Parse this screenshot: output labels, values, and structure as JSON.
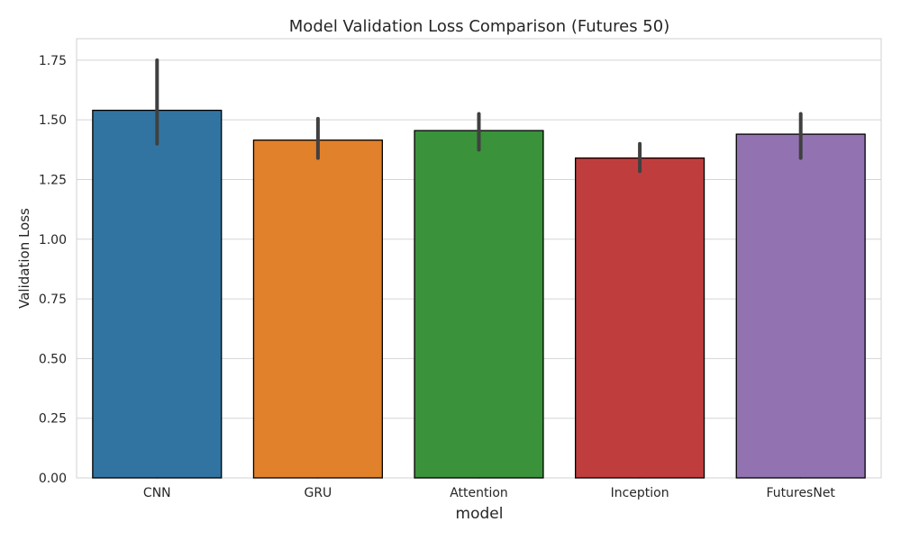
{
  "chart_data": {
    "type": "bar",
    "title": "Model Validation Loss Comparison (Futures 50)",
    "xlabel": "model",
    "ylabel": "Validation Loss",
    "categories": [
      "CNN",
      "GRU",
      "Attention",
      "Inception",
      "FuturesNet"
    ],
    "values": [
      1.54,
      1.415,
      1.455,
      1.34,
      1.44
    ],
    "error_low": [
      1.4,
      1.34,
      1.375,
      1.285,
      1.34
    ],
    "error_high": [
      1.75,
      1.505,
      1.525,
      1.4,
      1.525
    ],
    "colors": [
      "#3274a1",
      "#e1812c",
      "#3a923a",
      "#c03d3e",
      "#9372b2"
    ],
    "ylim": [
      0,
      1.84
    ],
    "yticks": [
      "0.00",
      "0.25",
      "0.50",
      "0.75",
      "1.00",
      "1.25",
      "1.50",
      "1.75"
    ],
    "grid": true,
    "legend": "none"
  }
}
